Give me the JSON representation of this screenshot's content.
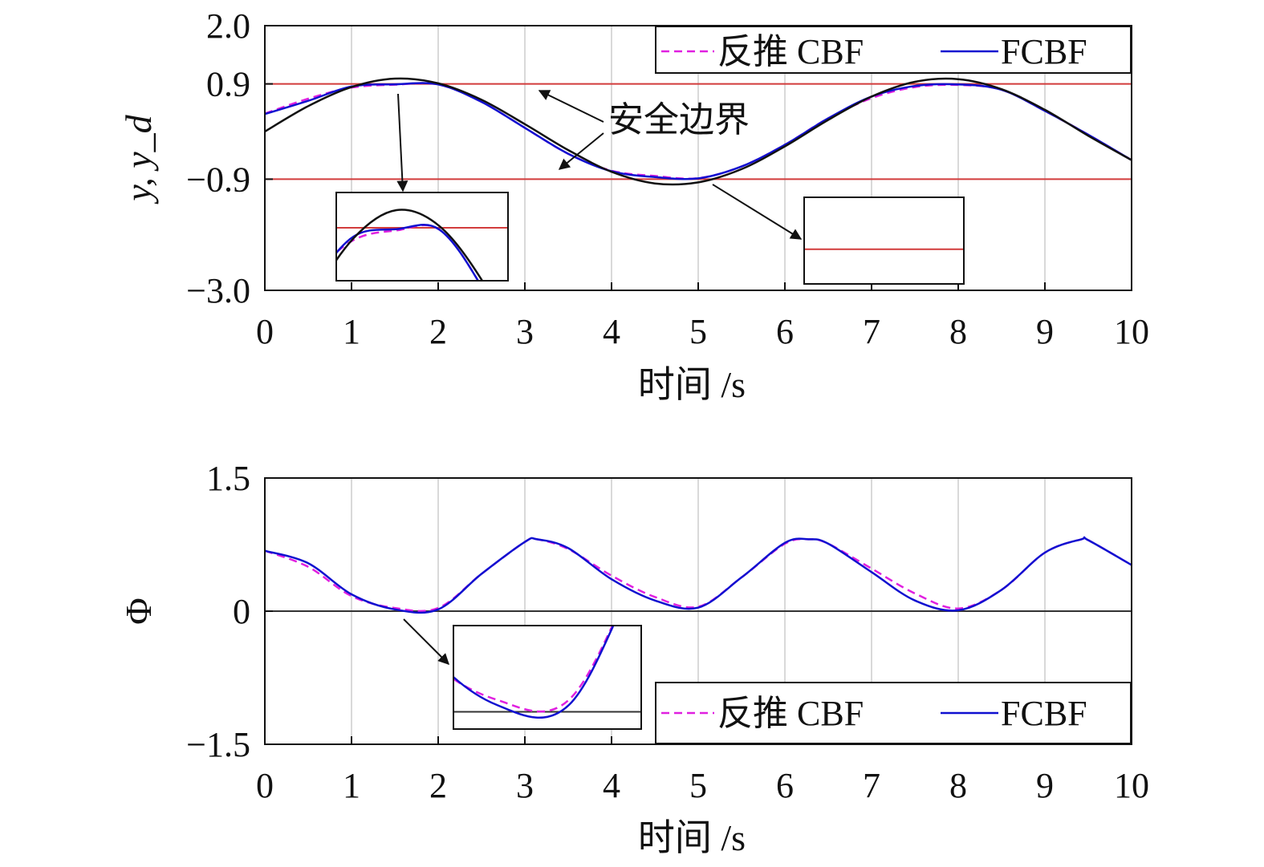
{
  "colors": {
    "backstepping": "#e020e0",
    "fcbf": "#1010d0",
    "reference": "#111111",
    "boundary": "#d23c3c",
    "zero_line": "#333333",
    "grid": "#d9d9d9"
  },
  "chart_data": [
    {
      "type": "line",
      "xlabel": "时间 /s",
      "ylabel": "y, y_d",
      "xlim": [
        0,
        10
      ],
      "ylim": [
        -3.0,
        2.0
      ],
      "xticks": [
        "0",
        "1",
        "2",
        "3",
        "4",
        "5",
        "6",
        "7",
        "8",
        "9",
        "10"
      ],
      "yticks": [
        "2.0",
        "0.9",
        "−0.9",
        "−3.0"
      ],
      "ytick_values": [
        2.0,
        0.9,
        -0.9,
        -3.0
      ],
      "grid": "vertical",
      "legend": {
        "position": "top-right",
        "entries": [
          "反推 CBF",
          "FCBF"
        ]
      },
      "annotation": "安全边界",
      "safety_bounds": [
        0.9,
        -0.9
      ],
      "x": [
        0,
        0.5,
        1.0,
        1.5,
        2.0,
        2.5,
        3.0,
        3.5,
        4.0,
        4.5,
        5.0,
        5.5,
        6.0,
        6.5,
        7.0,
        7.5,
        8.0,
        8.5,
        9.0,
        9.5,
        10.0
      ],
      "series": [
        {
          "name": "反推 CBF",
          "style": "dashed",
          "values": [
            0.34,
            0.62,
            0.83,
            0.885,
            0.89,
            0.56,
            0.07,
            -0.42,
            -0.74,
            -0.84,
            -0.88,
            -0.66,
            -0.25,
            0.25,
            0.63,
            0.84,
            0.88,
            0.79,
            0.39,
            -0.06,
            -0.54
          ]
        },
        {
          "name": "FCBF",
          "style": "solid",
          "values": [
            0.33,
            0.58,
            0.85,
            0.892,
            0.89,
            0.56,
            0.07,
            -0.42,
            -0.75,
            -0.86,
            -0.885,
            -0.66,
            -0.25,
            0.25,
            0.66,
            0.86,
            0.89,
            0.79,
            0.39,
            -0.06,
            -0.54
          ]
        },
        {
          "name": "",
          "style": "solid-reference",
          "values": [
            0.0,
            0.48,
            0.84,
            1.0,
            0.91,
            0.6,
            0.14,
            -0.35,
            -0.76,
            -0.98,
            -0.96,
            -0.71,
            -0.28,
            0.22,
            0.66,
            0.94,
            0.99,
            0.8,
            0.41,
            -0.08,
            -0.54
          ]
        }
      ],
      "insets": [
        {
          "x_range": [
            0.8,
            2.8
          ],
          "y_range": [
            0.6,
            1.1
          ]
        },
        {
          "x_range": [
            6.25,
            8.1
          ],
          "y_range": [
            -1.1,
            -0.6
          ]
        }
      ]
    },
    {
      "type": "line",
      "xlabel": "时间 /s",
      "ylabel": "Φ",
      "xlim": [
        0,
        10
      ],
      "ylim": [
        -1.5,
        1.5
      ],
      "xticks": [
        "0",
        "1",
        "2",
        "3",
        "4",
        "5",
        "6",
        "7",
        "8",
        "9",
        "10"
      ],
      "yticks": [
        "1.5",
        "0",
        "−1.5"
      ],
      "ytick_values": [
        1.5,
        0,
        -1.5
      ],
      "grid": "vertical",
      "legend": {
        "position": "bottom-right",
        "entries": [
          "反推 CBF",
          "FCBF"
        ]
      },
      "x": [
        0,
        0.5,
        1.0,
        1.5,
        2.0,
        2.5,
        3.0,
        3.14,
        3.5,
        4.0,
        4.5,
        5.0,
        5.5,
        6.0,
        6.28,
        6.5,
        7.0,
        7.5,
        8.0,
        8.5,
        9.0,
        9.42,
        9.5,
        10.0
      ],
      "series": [
        {
          "name": "反推 CBF",
          "style": "dashed",
          "values": [
            0.68,
            0.5,
            0.17,
            0.035,
            0.035,
            0.42,
            0.78,
            0.81,
            0.7,
            0.4,
            0.16,
            0.05,
            0.38,
            0.76,
            0.81,
            0.76,
            0.48,
            0.2,
            0.03,
            0.24,
            0.66,
            0.81,
            0.8,
            0.52
          ]
        },
        {
          "name": "FCBF",
          "style": "solid",
          "values": [
            0.68,
            0.54,
            0.19,
            0.02,
            0.02,
            0.42,
            0.78,
            0.81,
            0.71,
            0.36,
            0.12,
            0.04,
            0.38,
            0.77,
            0.81,
            0.76,
            0.44,
            0.12,
            0.01,
            0.24,
            0.66,
            0.81,
            0.8,
            0.52
          ]
        }
      ],
      "insets": [
        {
          "x_range": [
            1.2,
            2.5
          ],
          "y_range": [
            -0.05,
            0.25
          ]
        }
      ]
    }
  ]
}
